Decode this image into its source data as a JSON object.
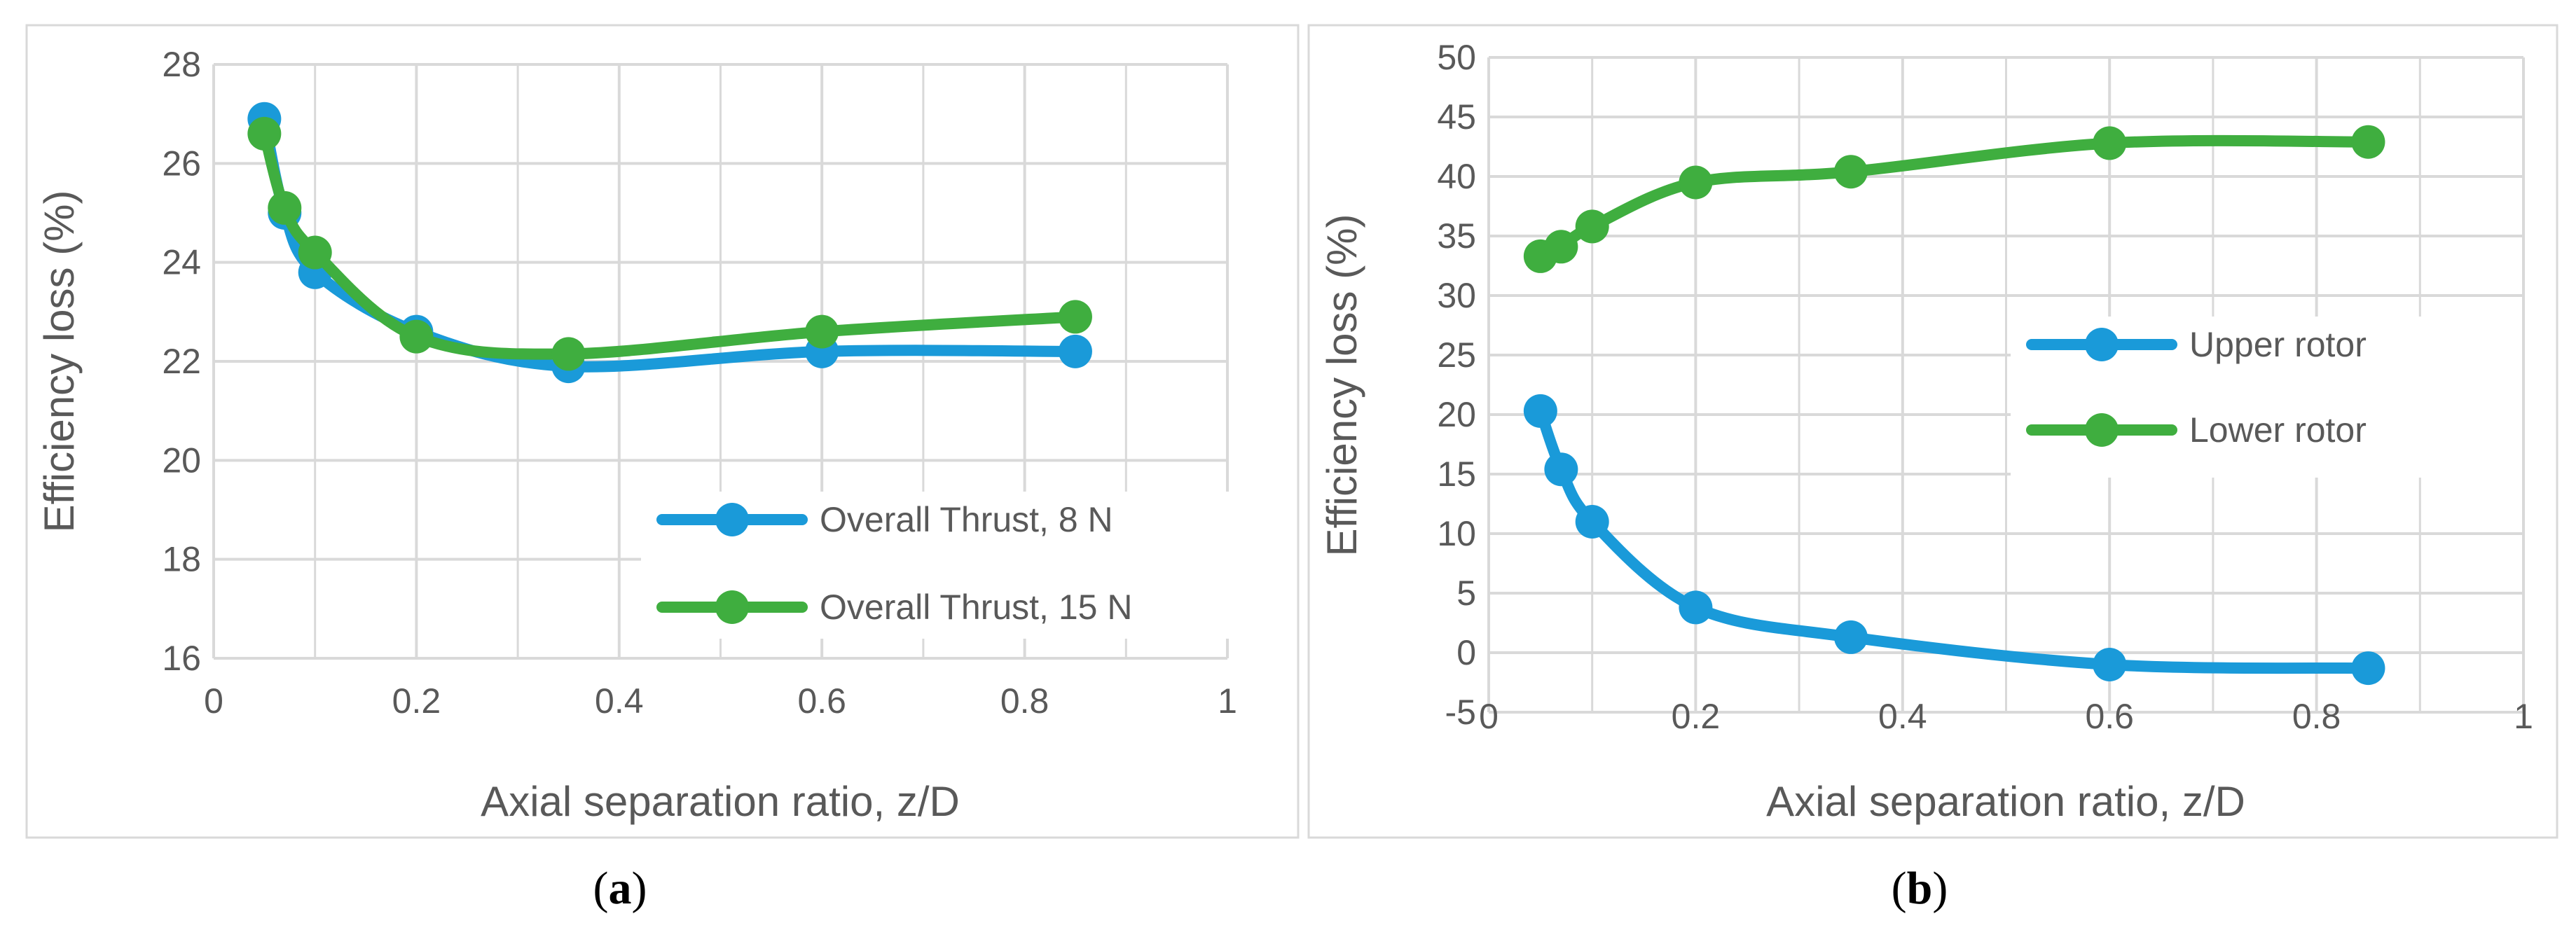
{
  "chart_data": [
    {
      "type": "line",
      "panel_label": "a",
      "title": "",
      "xlabel": "Axial separation ratio, z/D",
      "ylabel": "Efficiency loss (%)",
      "xlim": [
        0,
        1
      ],
      "ylim": [
        16,
        28
      ],
      "xticks": [
        0,
        0.2,
        0.4,
        0.6,
        0.8,
        1
      ],
      "xtick_labels": [
        "0",
        "0.2",
        "0.4",
        "0.6",
        "0.8",
        "1"
      ],
      "yticks": [
        16,
        18,
        20,
        22,
        24,
        26,
        28
      ],
      "ytick_labels": [
        "16",
        "18",
        "20",
        "22",
        "24",
        "26",
        "28"
      ],
      "grid": true,
      "legend_position": "bottom-right",
      "series": [
        {
          "name": "Overall Thrust, 8 N",
          "color": "#1a9ad9",
          "x": [
            0.05,
            0.07,
            0.1,
            0.2,
            0.35,
            0.6,
            0.85
          ],
          "y": [
            26.9,
            25.0,
            23.8,
            22.6,
            21.9,
            22.2,
            22.2
          ]
        },
        {
          "name": "Overall Thrust, 15 N",
          "color": "#3fae3f",
          "x": [
            0.05,
            0.07,
            0.1,
            0.2,
            0.35,
            0.6,
            0.85
          ],
          "y": [
            26.6,
            25.1,
            24.2,
            22.5,
            22.15,
            22.6,
            22.9
          ]
        }
      ]
    },
    {
      "type": "line",
      "panel_label": "b",
      "title": "",
      "xlabel": "Axial separation ratio, z/D",
      "ylabel": "Efficiency loss (%)",
      "xlim": [
        0,
        1
      ],
      "ylim": [
        -5,
        50
      ],
      "xticks": [
        0,
        0.2,
        0.4,
        0.6,
        0.8,
        1
      ],
      "xtick_labels": [
        "0",
        "0.2",
        "0.4",
        "0.6",
        "0.8",
        "1"
      ],
      "yticks": [
        -5,
        0,
        5,
        10,
        15,
        20,
        25,
        30,
        35,
        40,
        45,
        50
      ],
      "ytick_labels": [
        "-5",
        "0",
        "5",
        "10",
        "15",
        "20",
        "25",
        "30",
        "35",
        "40",
        "45",
        "50"
      ],
      "grid": true,
      "legend_position": "middle-right",
      "series": [
        {
          "name": "Upper rotor",
          "color": "#1a9ad9",
          "x": [
            0.05,
            0.07,
            0.1,
            0.2,
            0.35,
            0.6,
            0.85
          ],
          "y": [
            20.3,
            15.4,
            11.0,
            3.8,
            1.3,
            -1.0,
            -1.3
          ]
        },
        {
          "name": "Lower rotor",
          "color": "#3fae3f",
          "x": [
            0.05,
            0.07,
            0.1,
            0.2,
            0.35,
            0.6,
            0.85
          ],
          "y": [
            33.3,
            34.1,
            35.8,
            39.5,
            40.4,
            42.8,
            42.9
          ]
        }
      ]
    }
  ],
  "captions": [
    "(a)",
    "(b)"
  ]
}
